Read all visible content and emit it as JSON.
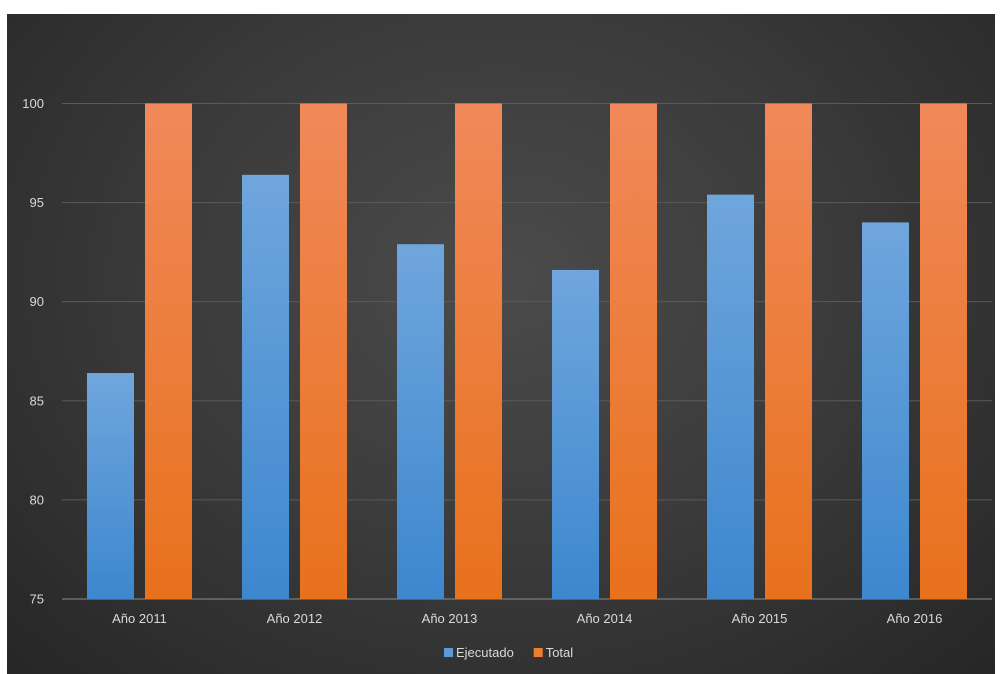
{
  "chart_data": {
    "type": "bar",
    "categories": [
      "Año 2011",
      "Año 2012",
      "Año 2013",
      "Año 2014",
      "Año 2015",
      "Año 2016"
    ],
    "series": [
      {
        "name": "Ejecutado",
        "values": [
          86.4,
          96.4,
          92.9,
          91.6,
          95.4,
          94.0
        ],
        "color": "#5b9bd5"
      },
      {
        "name": "Total",
        "values": [
          100,
          100,
          100,
          100,
          100,
          100
        ],
        "color": "#ed7d31"
      }
    ],
    "yticks": [
      "75",
      "80",
      "85",
      "90",
      "95",
      "100"
    ],
    "ylim": [
      75,
      103
    ],
    "grid": true,
    "legend_position": "bottom",
    "background": "#404040"
  }
}
